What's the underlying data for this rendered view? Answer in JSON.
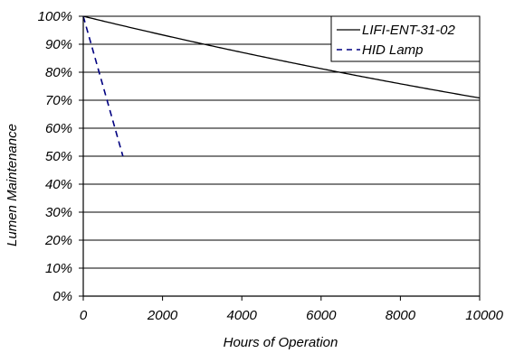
{
  "chart_data": {
    "type": "line",
    "xlabel": "Hours of Operation",
    "ylabel": "Lumen Maintenance",
    "xlim": [
      0,
      10000
    ],
    "ylim": [
      0,
      100
    ],
    "x_ticks": [
      "0",
      "2000",
      "4000",
      "6000",
      "8000",
      "10000"
    ],
    "y_ticks": [
      "0%",
      "10%",
      "20%",
      "30%",
      "40%",
      "50%",
      "60%",
      "70%",
      "80%",
      "90%",
      "100%"
    ],
    "grid": "horizontal",
    "legend_position": "top-right",
    "series": [
      {
        "name": "LIFI-ENT-31-02",
        "style": "solid",
        "color": "#000000",
        "x": [
          0,
          2000,
          4000,
          6000,
          8000,
          10000
        ],
        "y": [
          100,
          93.3,
          87.0,
          81.3,
          75.9,
          70.8
        ]
      },
      {
        "name": "HID Lamp",
        "style": "dashed",
        "color": "#000080",
        "x": [
          0,
          1000
        ],
        "y": [
          100,
          50
        ]
      }
    ]
  }
}
